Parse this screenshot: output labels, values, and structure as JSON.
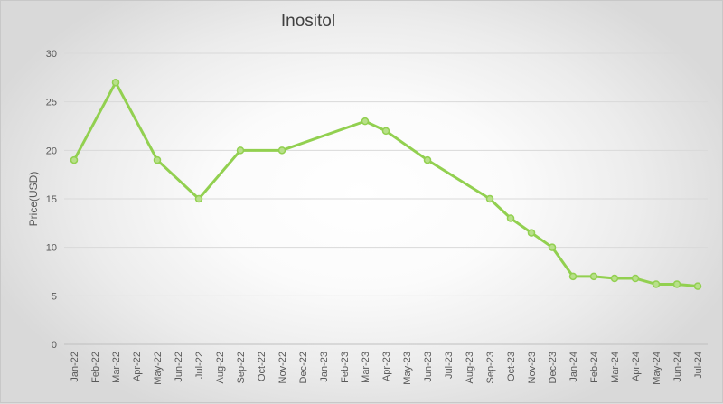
{
  "chart_data": {
    "type": "line",
    "title": "Inositol",
    "xlabel": "",
    "ylabel": "Price(USD)",
    "ylim": [
      0,
      30
    ],
    "yticks": [
      0,
      5,
      10,
      15,
      20,
      25,
      30
    ],
    "grid": true,
    "legend": "none",
    "categories": [
      "Jan-22",
      "Feb-22",
      "Mar-22",
      "Apr-22",
      "May-22",
      "Jun-22",
      "Jul-22",
      "Aug-22",
      "Sep-22",
      "Oct-22",
      "Nov-22",
      "Dec-22",
      "Jan-23",
      "Feb-23",
      "Mar-23",
      "Apr-23",
      "May-23",
      "Jun-23",
      "Jul-23",
      "Aug-23",
      "Sep-23",
      "Oct-23",
      "Nov-23",
      "Dec-23",
      "Jan-24",
      "Feb-24",
      "Mar-24",
      "Apr-24",
      "May-24",
      "Jun-24",
      "Jul-24"
    ],
    "series": [
      {
        "color": "#92d050",
        "points": [
          {
            "x": "Jan-22",
            "y": 19
          },
          {
            "x": "Mar-22",
            "y": 27
          },
          {
            "x": "May-22",
            "y": 19
          },
          {
            "x": "Jul-22",
            "y": 15
          },
          {
            "x": "Sep-22",
            "y": 20
          },
          {
            "x": "Nov-22",
            "y": 20
          },
          {
            "x": "Mar-23",
            "y": 23
          },
          {
            "x": "Apr-23",
            "y": 22
          },
          {
            "x": "Jun-23",
            "y": 19
          },
          {
            "x": "Sep-23",
            "y": 15
          },
          {
            "x": "Oct-23",
            "y": 13
          },
          {
            "x": "Nov-23",
            "y": 11.5
          },
          {
            "x": "Dec-23",
            "y": 10
          },
          {
            "x": "Jan-24",
            "y": 7
          },
          {
            "x": "Feb-24",
            "y": 7
          },
          {
            "x": "Mar-24",
            "y": 6.8
          },
          {
            "x": "Apr-24",
            "y": 6.8
          },
          {
            "x": "May-24",
            "y": 6.2
          },
          {
            "x": "Jun-24",
            "y": 6.2
          },
          {
            "x": "Jul-24",
            "y": 6
          }
        ]
      }
    ]
  }
}
